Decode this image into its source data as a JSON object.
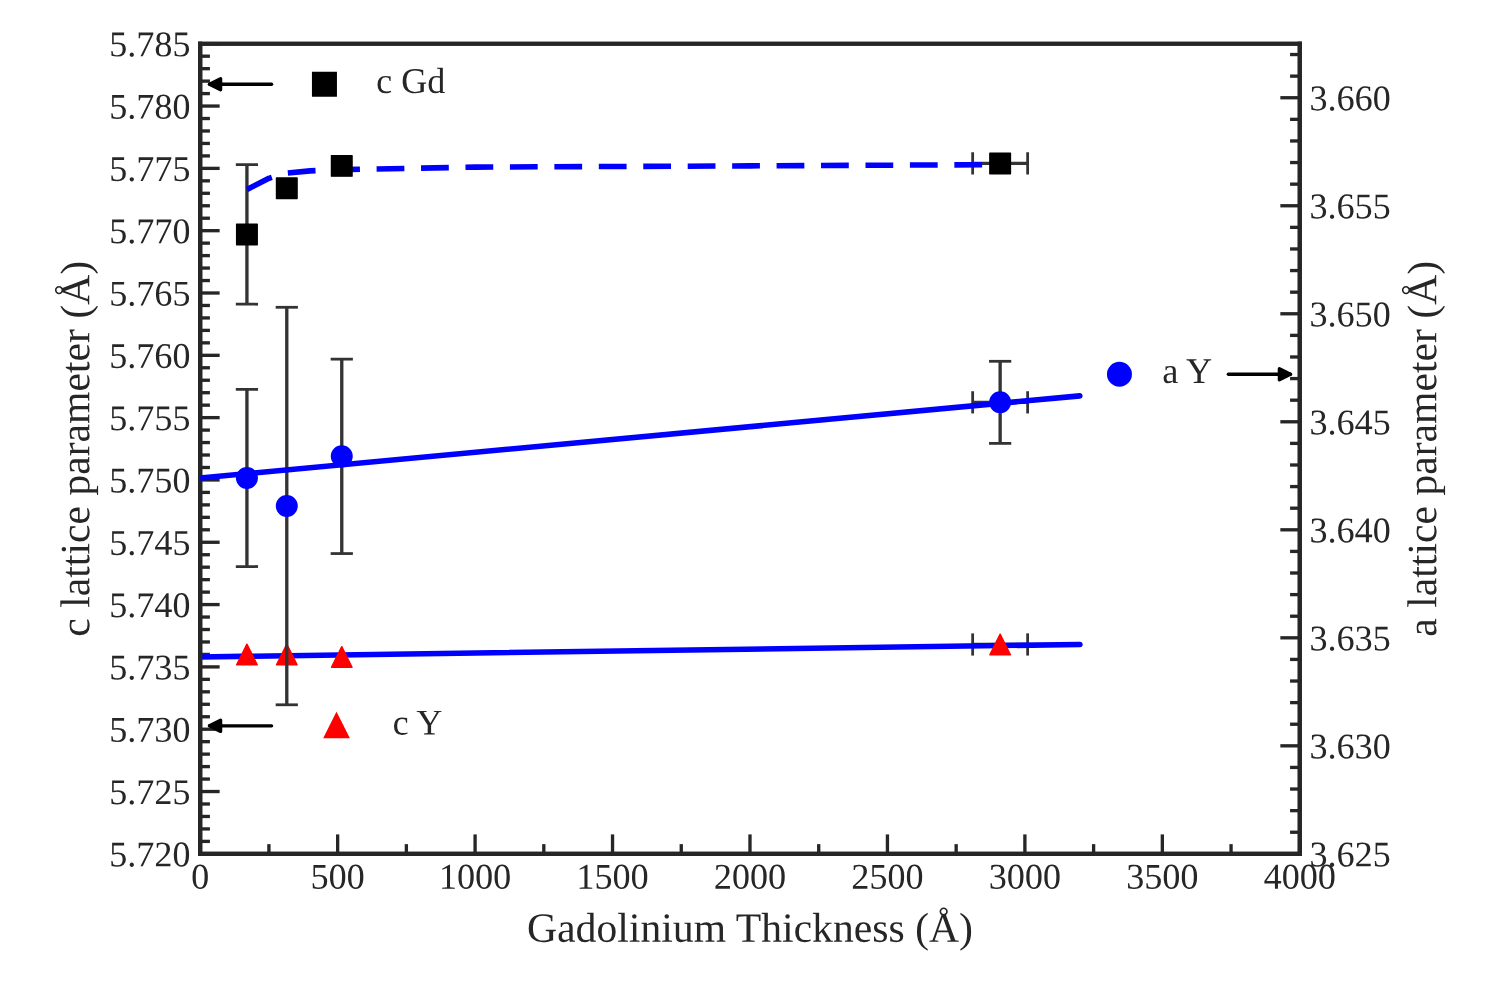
{
  "chart_data": {
    "type": "scatter",
    "xlabel": "Gadolinium Thickness (Å)",
    "ylabel": "c lattice parameter (Å)",
    "y2label": "a lattice parameter (Å)",
    "xlim": [
      0,
      4000
    ],
    "xticks": [
      0,
      500,
      1000,
      1500,
      2000,
      2500,
      3000,
      3500,
      4000
    ],
    "ylim": [
      5.72,
      5.785
    ],
    "yticks": [
      {
        "value": 5.72,
        "label": "5.720"
      },
      {
        "value": 5.725,
        "label": "5.725"
      },
      {
        "value": 5.73,
        "label": "5.730"
      },
      {
        "value": 5.735,
        "label": "5.735"
      },
      {
        "value": 5.74,
        "label": "5.740"
      },
      {
        "value": 5.745,
        "label": "5.745"
      },
      {
        "value": 5.75,
        "label": "5.750"
      },
      {
        "value": 5.755,
        "label": "5.755"
      },
      {
        "value": 5.76,
        "label": "5.760"
      },
      {
        "value": 5.765,
        "label": "5.765"
      },
      {
        "value": 5.77,
        "label": "5.770"
      },
      {
        "value": 5.775,
        "label": "5.775"
      },
      {
        "value": 5.78,
        "label": "5.780"
      },
      {
        "value": 5.785,
        "label": "5.785"
      }
    ],
    "y2lim": [
      3.625,
      3.6625
    ],
    "y2ticks": [
      {
        "value": 3.625,
        "label": "3.625"
      },
      {
        "value": 3.63,
        "label": "3.630"
      },
      {
        "value": 3.635,
        "label": "3.635"
      },
      {
        "value": 3.64,
        "label": "3.640"
      },
      {
        "value": 3.645,
        "label": "3.645"
      },
      {
        "value": 3.65,
        "label": "3.650"
      },
      {
        "value": 3.655,
        "label": "3.655"
      },
      {
        "value": 3.66,
        "label": "3.660"
      }
    ],
    "legend": "top left",
    "series": [
      {
        "name": "c Gd",
        "marker": "square",
        "color": "#000000",
        "x": [
          170,
          315,
          515,
          2910
        ],
        "values": [
          5.7697,
          5.7734,
          5.7752,
          5.7754
        ],
        "errors": [
          0.0056,
          null,
          null,
          null
        ],
        "xerrors": [
          null,
          null,
          null,
          100
        ]
      },
      {
        "name": "a Y",
        "marker": "circle",
        "color": "#0000ff",
        "axis": "y2",
        "x": [
          170,
          315,
          515,
          2910
        ],
        "values": [
          3.6424,
          3.6411,
          3.6434,
          3.6459
        ],
        "errors": [
          0.0041,
          0.0092,
          0.0045,
          0.0019
        ],
        "xerrors": [
          null,
          null,
          null,
          100
        ]
      },
      {
        "name": "c Y",
        "marker": "triangle",
        "color": "#ff0000",
        "x": [
          170,
          315,
          515,
          2910
        ],
        "values": [
          5.736,
          5.736,
          5.7358,
          5.7368
        ],
        "xerrors": [
          null,
          null,
          null,
          100
        ]
      },
      {
        "type": "line",
        "line_style": "dashed",
        "color": "#0000ff",
        "x": [
          170,
          250,
          304,
          400,
          515,
          1000,
          2000,
          2910
        ],
        "values": [
          5.7733,
          5.7742,
          5.7746,
          5.7748,
          5.7749,
          5.7751,
          5.7752,
          5.7753
        ]
      },
      {
        "type": "line",
        "line_style": "solid",
        "color": "#0000ff",
        "axis": "y2",
        "x": [
          0,
          3200
        ],
        "values": [
          3.6424,
          3.6462
        ]
      },
      {
        "type": "line",
        "line_style": "solid",
        "color": "#0000ff",
        "x": [
          0,
          3200
        ],
        "values": [
          5.7358,
          5.7368
        ]
      }
    ]
  }
}
